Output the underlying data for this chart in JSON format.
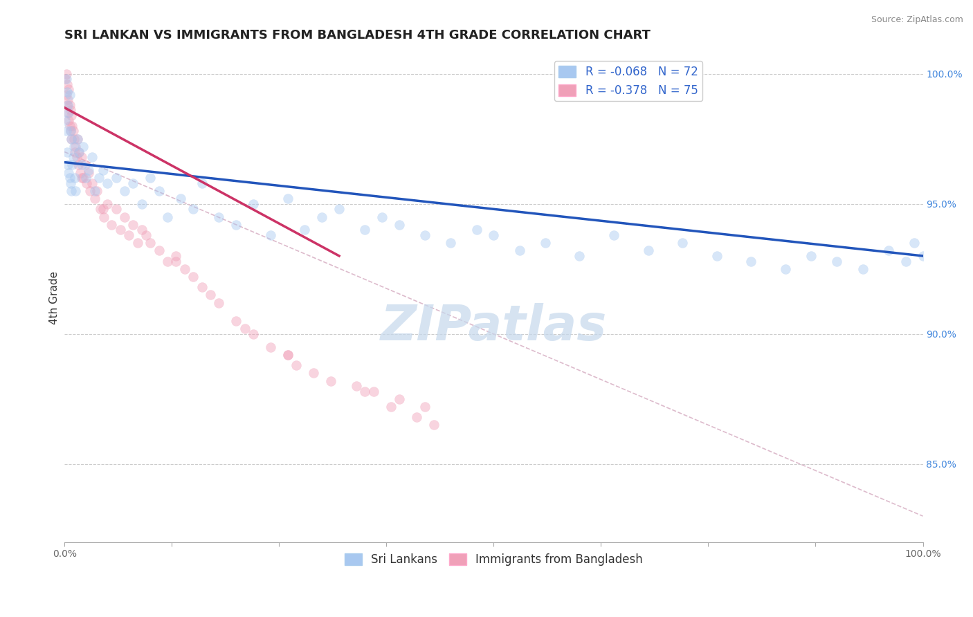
{
  "title": "SRI LANKAN VS IMMIGRANTS FROM BANGLADESH 4TH GRADE CORRELATION CHART",
  "source_text": "Source: ZipAtlas.com",
  "ylabel": "4th Grade",
  "xlim": [
    0.0,
    1.0
  ],
  "ylim": [
    0.82,
    1.008
  ],
  "right_yticks": [
    0.85,
    0.9,
    0.95,
    1.0
  ],
  "right_yticklabels": [
    "85.0%",
    "90.0%",
    "95.0%",
    "100.0%"
  ],
  "xtick_positions": [
    0.0,
    0.125,
    0.25,
    0.375,
    0.5,
    0.625,
    0.75,
    0.875,
    1.0
  ],
  "xticklabels_ends": [
    "0.0%",
    "100.0%"
  ],
  "blue_R": -0.068,
  "blue_N": 72,
  "pink_R": -0.378,
  "pink_N": 75,
  "blue_color": "#A8C8F0",
  "pink_color": "#F0A0B8",
  "blue_line_color": "#2255BB",
  "pink_line_color": "#CC3366",
  "ref_line_color": "#DDBBCC",
  "watermark_text": "ZIPatlas",
  "watermark_color": "#C5D8EC",
  "legend_label_blue": "Sri Lankans",
  "legend_label_pink": "Immigrants from Bangladesh",
  "blue_scatter_x": [
    0.001,
    0.002,
    0.002,
    0.003,
    0.003,
    0.004,
    0.004,
    0.005,
    0.005,
    0.006,
    0.006,
    0.007,
    0.007,
    0.008,
    0.008,
    0.009,
    0.01,
    0.011,
    0.012,
    0.013,
    0.015,
    0.017,
    0.02,
    0.022,
    0.025,
    0.028,
    0.032,
    0.035,
    0.04,
    0.045,
    0.05,
    0.06,
    0.07,
    0.08,
    0.09,
    0.1,
    0.11,
    0.12,
    0.135,
    0.15,
    0.16,
    0.18,
    0.2,
    0.22,
    0.24,
    0.26,
    0.28,
    0.3,
    0.32,
    0.35,
    0.37,
    0.39,
    0.42,
    0.45,
    0.48,
    0.5,
    0.53,
    0.56,
    0.6,
    0.64,
    0.68,
    0.72,
    0.76,
    0.8,
    0.84,
    0.87,
    0.9,
    0.93,
    0.96,
    0.98,
    0.99,
    1.0
  ],
  "blue_scatter_y": [
    0.982,
    0.978,
    0.998,
    0.97,
    0.993,
    0.965,
    0.988,
    0.962,
    0.985,
    0.96,
    0.992,
    0.958,
    0.978,
    0.955,
    0.975,
    0.965,
    0.968,
    0.972,
    0.96,
    0.955,
    0.975,
    0.97,
    0.965,
    0.972,
    0.96,
    0.963,
    0.968,
    0.955,
    0.96,
    0.963,
    0.958,
    0.96,
    0.955,
    0.958,
    0.95,
    0.96,
    0.955,
    0.945,
    0.952,
    0.948,
    0.958,
    0.945,
    0.942,
    0.95,
    0.938,
    0.952,
    0.94,
    0.945,
    0.948,
    0.94,
    0.945,
    0.942,
    0.938,
    0.935,
    0.94,
    0.938,
    0.932,
    0.935,
    0.93,
    0.938,
    0.932,
    0.935,
    0.93,
    0.928,
    0.925,
    0.93,
    0.928,
    0.925,
    0.932,
    0.928,
    0.935,
    0.93
  ],
  "pink_scatter_x": [
    0.001,
    0.002,
    0.002,
    0.003,
    0.003,
    0.004,
    0.004,
    0.005,
    0.005,
    0.006,
    0.006,
    0.007,
    0.007,
    0.008,
    0.008,
    0.009,
    0.01,
    0.011,
    0.012,
    0.013,
    0.014,
    0.015,
    0.016,
    0.017,
    0.018,
    0.02,
    0.022,
    0.024,
    0.026,
    0.028,
    0.03,
    0.032,
    0.035,
    0.038,
    0.042,
    0.046,
    0.05,
    0.055,
    0.06,
    0.065,
    0.07,
    0.075,
    0.08,
    0.085,
    0.09,
    0.095,
    0.1,
    0.11,
    0.12,
    0.13,
    0.14,
    0.15,
    0.16,
    0.17,
    0.18,
    0.2,
    0.21,
    0.22,
    0.24,
    0.26,
    0.27,
    0.29,
    0.31,
    0.34,
    0.36,
    0.39,
    0.42,
    0.02,
    0.045,
    0.13,
    0.26,
    0.35,
    0.38,
    0.41,
    0.43
  ],
  "pink_scatter_y": [
    0.998,
    0.992,
    1.0,
    0.988,
    0.996,
    0.985,
    0.99,
    0.982,
    0.994,
    0.98,
    0.988,
    0.978,
    0.986,
    0.975,
    0.984,
    0.98,
    0.978,
    0.975,
    0.97,
    0.972,
    0.968,
    0.975,
    0.965,
    0.97,
    0.962,
    0.968,
    0.96,
    0.965,
    0.958,
    0.962,
    0.955,
    0.958,
    0.952,
    0.955,
    0.948,
    0.945,
    0.95,
    0.942,
    0.948,
    0.94,
    0.945,
    0.938,
    0.942,
    0.935,
    0.94,
    0.938,
    0.935,
    0.932,
    0.928,
    0.93,
    0.925,
    0.922,
    0.918,
    0.915,
    0.912,
    0.905,
    0.902,
    0.9,
    0.895,
    0.892,
    0.888,
    0.885,
    0.882,
    0.88,
    0.878,
    0.875,
    0.872,
    0.96,
    0.948,
    0.928,
    0.892,
    0.878,
    0.872,
    0.868,
    0.865
  ],
  "blue_trend_x": [
    0.0,
    1.0
  ],
  "blue_trend_y": [
    0.966,
    0.93
  ],
  "pink_trend_x": [
    0.0,
    0.32
  ],
  "pink_trend_y": [
    0.987,
    0.93
  ],
  "ref_line_x": [
    0.0,
    1.0
  ],
  "ref_line_y": [
    0.97,
    0.83
  ],
  "dot_size": 100,
  "dot_alpha": 0.45,
  "title_fontsize": 13,
  "source_fontsize": 9,
  "axis_label_fontsize": 11,
  "tick_fontsize": 10,
  "legend_fontsize": 12,
  "watermark_fontsize": 52
}
